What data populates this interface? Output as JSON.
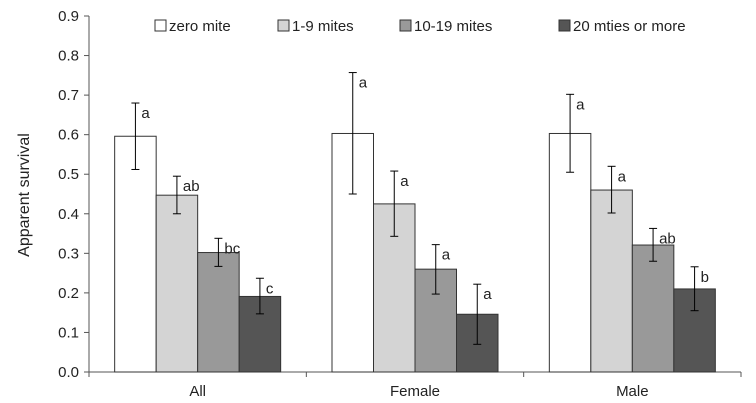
{
  "chart_data": {
    "type": "bar",
    "title": "",
    "xlabel": "",
    "ylabel": "Apparent survival",
    "ylim": [
      0,
      0.9
    ],
    "yticks": [
      "0.0",
      "0.1",
      "0.2",
      "0.3",
      "0.4",
      "0.5",
      "0.6",
      "0.7",
      "0.8",
      "0.9"
    ],
    "grid": false,
    "legend_position": "top",
    "categories": [
      "All",
      "Female",
      "Male"
    ],
    "series": [
      {
        "name": "zero mite",
        "color": "#ffffff",
        "values": [
          0.596,
          0.603,
          0.603
        ],
        "err_low": [
          0.512,
          0.45,
          0.505
        ],
        "err_high": [
          0.68,
          0.757,
          0.702
        ],
        "labels": [
          "a",
          "a",
          "a"
        ]
      },
      {
        "name": "1-9 mites",
        "color": "#d4d4d4",
        "values": [
          0.447,
          0.425,
          0.46
        ],
        "err_low": [
          0.4,
          0.343,
          0.402
        ],
        "err_high": [
          0.495,
          0.508,
          0.52
        ],
        "labels": [
          "ab",
          "a",
          "a"
        ]
      },
      {
        "name": "10-19 mites",
        "color": "#999999",
        "values": [
          0.302,
          0.26,
          0.321
        ],
        "err_low": [
          0.267,
          0.197,
          0.28
        ],
        "err_high": [
          0.338,
          0.322,
          0.363
        ],
        "labels": [
          "bc",
          "a",
          "ab"
        ]
      },
      {
        "name": "20 mties or more",
        "color": "#555555",
        "values": [
          0.191,
          0.146,
          0.21
        ],
        "err_low": [
          0.147,
          0.07,
          0.155
        ],
        "err_high": [
          0.237,
          0.222,
          0.266
        ],
        "labels": [
          "c",
          "a",
          "b"
        ]
      }
    ]
  }
}
